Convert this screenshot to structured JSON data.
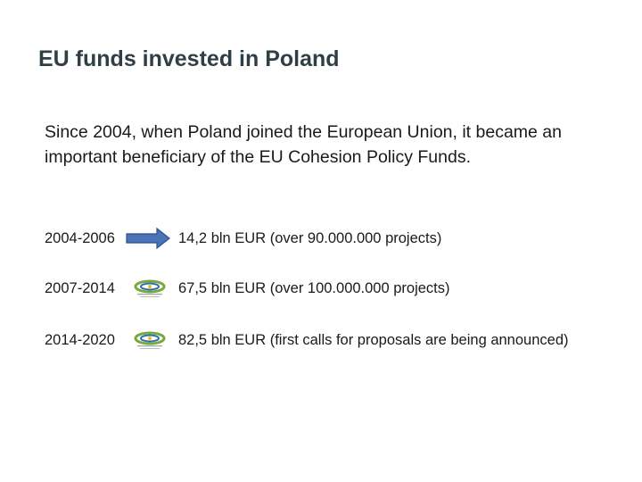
{
  "slide": {
    "title": "EU funds invested in Poland",
    "intro": "Since 2004, when Poland joined the European Union, it became an important beneficiary of the EU Cohesion Policy Funds."
  },
  "rows": [
    {
      "period": "2004-2006",
      "icon": "arrow-right-icon",
      "description": "14,2 bln EUR (over 90.000.000 projects)"
    },
    {
      "period": "2007-2014",
      "icon": "eu-funds-logo-icon",
      "description": "67,5 bln EUR (over 100.000.000 projects)"
    },
    {
      "period": "2014-2020",
      "icon": "eu-funds-logo-icon",
      "description": "82,5 bln EUR  (first calls for proposals are being announced)"
    }
  ],
  "colors": {
    "title": "#2f3f45",
    "arrow_fill": "#4a73b8",
    "arrow_stroke": "#2f4f8a",
    "logo_green": "#7aa83c",
    "logo_blue": "#2a6fb5",
    "logo_yellow": "#e6c21c"
  }
}
